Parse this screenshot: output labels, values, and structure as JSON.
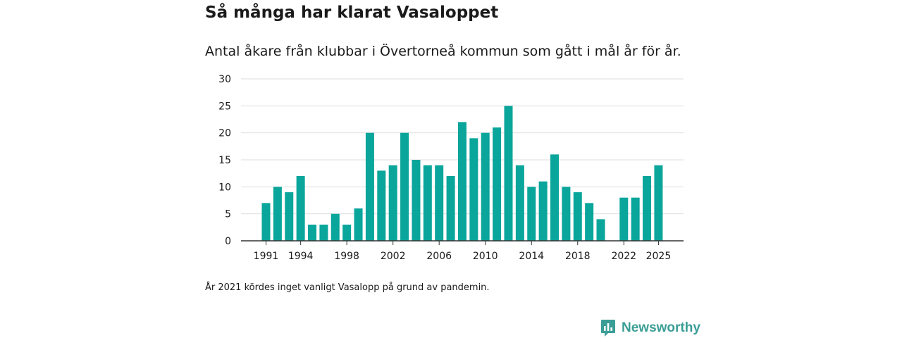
{
  "colors": {
    "bar": "#0aa59b",
    "grid": "#dddddd",
    "axis": "#333333",
    "brand": "#3a9e96"
  },
  "header": {
    "title": "Så många har klarat Vasaloppet",
    "subtitle": "Antal åkare från klubbar i Övertorneå kommun som gått i mål år för år."
  },
  "footnote": "År 2021 kördes inget vanligt Vasalopp på grund av pandemin.",
  "brand": {
    "name": "Newsworthy",
    "icon": "newsworthy-logo-icon"
  },
  "chart_data": {
    "type": "bar",
    "title": "Så många har klarat Vasaloppet",
    "subtitle": "Antal åkare från klubbar i Övertorneå kommun som gått i mål år för år.",
    "xlabel": "",
    "ylabel": "",
    "ylim": [
      0,
      30
    ],
    "yticks": [
      0,
      5,
      10,
      15,
      20,
      25,
      30
    ],
    "xticks": [
      "1991",
      "1994",
      "1998",
      "2002",
      "2006",
      "2010",
      "2014",
      "2018",
      "2022",
      "2025"
    ],
    "grid": true,
    "categories": [
      "1991",
      "1992",
      "1993",
      "1994",
      "1995",
      "1996",
      "1997",
      "1998",
      "1999",
      "2000",
      "2001",
      "2002",
      "2003",
      "2004",
      "2005",
      "2006",
      "2007",
      "2008",
      "2009",
      "2010",
      "2011",
      "2012",
      "2013",
      "2014",
      "2015",
      "2016",
      "2017",
      "2018",
      "2019",
      "2020",
      "2021",
      "2022",
      "2023",
      "2024",
      "2025"
    ],
    "values": [
      7,
      10,
      9,
      12,
      3,
      3,
      5,
      3,
      6,
      20,
      13,
      14,
      20,
      15,
      14,
      14,
      12,
      22,
      19,
      20,
      21,
      25,
      14,
      10,
      11,
      16,
      10,
      9,
      7,
      4,
      null,
      8,
      8,
      12,
      14
    ]
  }
}
